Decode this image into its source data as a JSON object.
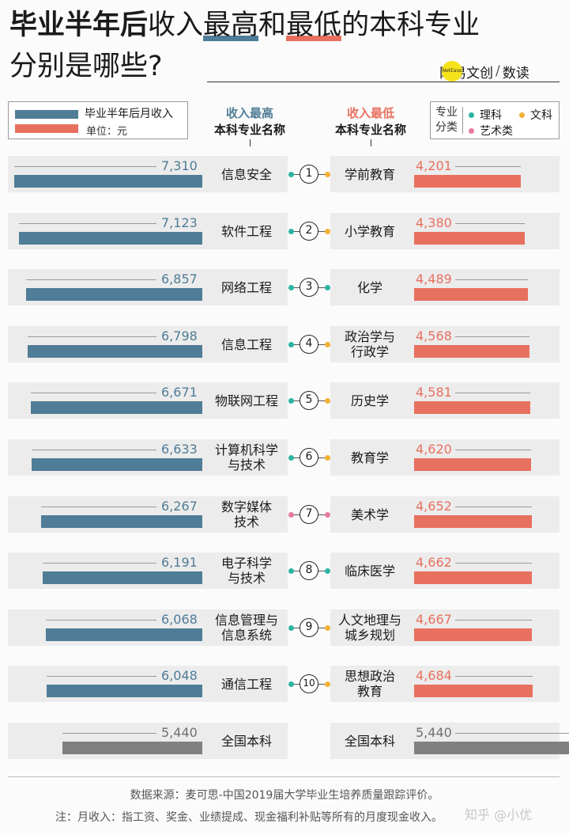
{
  "title": {
    "line1_bold": "毕业半年后",
    "line1_a": "收入",
    "line1_high": "最高",
    "line1_b": "和",
    "line1_low": "最低",
    "line1_c": "的本科专业",
    "line2": "分别是哪些?"
  },
  "brand": {
    "name": "网易文创",
    "badge": "NetEase",
    "slash": "/",
    "sub": "数读"
  },
  "legend": {
    "title": "毕业半年后月收入",
    "unit": "单位：元"
  },
  "headers": {
    "high_1": "收入最高",
    "high_2": "本科专业名称",
    "low_1": "收入最低",
    "low_2": "本科专业名称"
  },
  "categories": {
    "label": "专业分类",
    "items": [
      {
        "name": "理科",
        "color": "#2bb5a0"
      },
      {
        "name": "文科",
        "color": "#f2b134"
      },
      {
        "name": "艺术类",
        "color": "#e87aa0"
      }
    ]
  },
  "colors": {
    "high": "#4f7c96",
    "low": "#e8705f",
    "average": "#808080"
  },
  "chart_data": {
    "type": "bar",
    "title": "毕业半年后收入最高和最低的本科专业分别是哪些?",
    "unit": "元",
    "series": [
      {
        "name": "收入最高",
        "categories": [
          "信息安全",
          "软件工程",
          "网络工程",
          "信息工程",
          "物联网工程",
          "计算机科学与技术",
          "数字媒体技术",
          "电子科学与技术",
          "信息管理与信息系统",
          "通信工程"
        ],
        "display_names": [
          "信息安全",
          "软件工程",
          "网络工程",
          "信息工程",
          "物联网工程",
          "计算机科学\n与技术",
          "数字媒体\n技术",
          "电子科学\n与技术",
          "信息管理与\n信息系统",
          "通信工程"
        ],
        "values": [
          7310,
          7123,
          6857,
          6798,
          6671,
          6633,
          6267,
          6191,
          6068,
          6048
        ],
        "labels": [
          "7,310",
          "7,123",
          "6,857",
          "6,798",
          "6,671",
          "6,633",
          "6,267",
          "6,191",
          "6,068",
          "6,048"
        ],
        "classes": [
          "理科",
          "理科",
          "理科",
          "理科",
          "理科",
          "理科",
          "艺术类",
          "理科",
          "理科",
          "理科"
        ]
      },
      {
        "name": "收入最低",
        "categories": [
          "学前教育",
          "小学教育",
          "化学",
          "政治学与行政学",
          "历史学",
          "教育学",
          "美术学",
          "临床医学",
          "人文地理与城乡规划",
          "思想政治教育"
        ],
        "display_names": [
          "学前教育",
          "小学教育",
          "化学",
          "政治学与\n行政学",
          "历史学",
          "教育学",
          "美术学",
          "临床医学",
          "人文地理与\n城乡规划",
          "思想政治\n教育"
        ],
        "values": [
          4201,
          4380,
          4489,
          4568,
          4581,
          4620,
          4652,
          4662,
          4667,
          4684
        ],
        "labels": [
          "4,201",
          "4,380",
          "4,489",
          "4,568",
          "4,581",
          "4,620",
          "4,652",
          "4,662",
          "4,667",
          "4,684"
        ],
        "classes": [
          "文科",
          "文科",
          "理科",
          "文科",
          "文科",
          "文科",
          "艺术类",
          "理科",
          "文科",
          "文科"
        ]
      }
    ],
    "ranks": [
      "1",
      "2",
      "3",
      "4",
      "5",
      "6",
      "7",
      "8",
      "9",
      "10"
    ],
    "average": {
      "name": "全国本科",
      "value": 5440,
      "label": "5,440"
    }
  },
  "footer": {
    "source": "数据来源：麦可思-中国2019届大学毕业生培养质量跟踪评价。",
    "note": "注：月收入：指工资、奖金、业绩提成、现金福利补贴等所有的月度现金收入。",
    "watermark": "知乎 @小优"
  }
}
